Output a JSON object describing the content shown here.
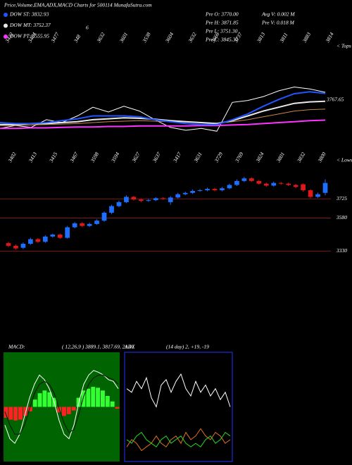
{
  "header": {
    "title": "Price,Volume,EMA,ADX,MACD Charts for 500114 MunafaSutra.com",
    "info": [
      "Pre O: 3770.00",
      "Pre H: 3871.85",
      "Pre L: 3751.30",
      "Pre C: 3845.30",
      "Avg V: 0.002 M",
      "Pre V: 0.018 M"
    ],
    "note": "6"
  },
  "chart_data": [
    {
      "type": "line",
      "ylim": [
        3230,
        4350
      ],
      "tops_title": "< Tops",
      "lows_title": "< Lows",
      "top_labels": [
        "3432",
        "3484",
        "3477",
        "348",
        "3632",
        "3601",
        "3538",
        "3604",
        "3632",
        "3666",
        "3737",
        "3813",
        "3811",
        "3883",
        "3814"
      ],
      "bottom_labels": [
        "3402",
        "3413",
        "3415",
        "3467",
        "3598",
        "3594",
        "3627",
        "3637",
        "3417",
        "3631",
        "3729",
        "3769",
        "3824",
        "3801",
        "3832",
        "3800"
      ],
      "annotations": [
        {
          "label": "3767.65",
          "value": 3767.65
        }
      ],
      "series": [
        {
          "color": "#ffffff",
          "values": [
            3470,
            3500,
            3480,
            3560,
            3530,
            3600,
            3690,
            3640,
            3700,
            3650,
            3560,
            3480,
            3450,
            3470,
            3440,
            3740,
            3760,
            3800,
            3860,
            3900,
            3880,
            3845
          ]
        },
        {
          "color": "#c8864a",
          "values": [
            3500,
            3500,
            3505,
            3510,
            3515,
            3520,
            3530,
            3540,
            3545,
            3550,
            3545,
            3540,
            3535,
            3530,
            3525,
            3540,
            3560,
            3590,
            3620,
            3650,
            3665,
            3670
          ]
        },
        {
          "name": "DOW PT: 3555.95",
          "color": "#ff33ff",
          "values": [
            3470,
            3470,
            3475,
            3475,
            3480,
            3485,
            3485,
            3490,
            3490,
            3495,
            3495,
            3495,
            3495,
            3500,
            3500,
            3505,
            3510,
            3520,
            3530,
            3540,
            3550,
            3556
          ]
        },
        {
          "name": "DOW MT: 3752.37",
          "color": "#e8e8e8",
          "values": [
            3510,
            3510,
            3520,
            3520,
            3530,
            3540,
            3560,
            3570,
            3580,
            3575,
            3565,
            3550,
            3540,
            3530,
            3520,
            3550,
            3600,
            3650,
            3690,
            3730,
            3745,
            3752
          ]
        },
        {
          "name": "DOW ST: 3832.93",
          "color": "#2255ff",
          "values": [
            3530,
            3520,
            3520,
            3530,
            3550,
            3570,
            3600,
            3600,
            3600,
            3590,
            3560,
            3540,
            3520,
            3510,
            3510,
            3560,
            3620,
            3700,
            3770,
            3830,
            3850,
            3833
          ]
        }
      ]
    },
    {
      "type": "candlestick",
      "ylim": [
        3300,
        3950
      ],
      "yticks": [
        3725,
        3580,
        3330
      ],
      "up_color": "#1e6fff",
      "down_color": "#e01818",
      "tick_color": "#7a1a1a",
      "open": [
        3390,
        3370,
        3355,
        3385,
        3420,
        3400,
        3440,
        3455,
        3430,
        3510,
        3540,
        3520,
        3535,
        3560,
        3620,
        3670,
        3700,
        3740,
        3720,
        3710,
        3715,
        3730,
        3700,
        3735,
        3760,
        3770,
        3785,
        3790,
        3800,
        3790,
        3805,
        3830,
        3860,
        3880,
        3860,
        3840,
        3825,
        3845,
        3840,
        3830,
        3835,
        3790,
        3740,
        3770
      ],
      "high": [
        3400,
        3380,
        3395,
        3430,
        3428,
        3450,
        3462,
        3462,
        3520,
        3550,
        3548,
        3545,
        3570,
        3630,
        3680,
        3712,
        3752,
        3748,
        3728,
        3724,
        3738,
        3738,
        3745,
        3770,
        3780,
        3795,
        3800,
        3810,
        3808,
        3815,
        3840,
        3872,
        3892,
        3888,
        3868,
        3848,
        3855,
        3852,
        3848,
        3838,
        3842,
        3798,
        3772,
        3871.85
      ],
      "low": [
        3360,
        3340,
        3345,
        3378,
        3392,
        3392,
        3432,
        3422,
        3424,
        3502,
        3512,
        3512,
        3528,
        3552,
        3610,
        3662,
        3692,
        3712,
        3700,
        3702,
        3708,
        3718,
        3680,
        3728,
        3752,
        3762,
        3778,
        3782,
        3782,
        3782,
        3798,
        3822,
        3852,
        3852,
        3832,
        3816,
        3818,
        3832,
        3822,
        3806,
        3780,
        3730,
        3732,
        3751.3
      ],
      "close": [
        3370,
        3350,
        3385,
        3420,
        3400,
        3440,
        3455,
        3430,
        3510,
        3540,
        3520,
        3535,
        3560,
        3620,
        3670,
        3700,
        3740,
        3720,
        3710,
        3715,
        3730,
        3725,
        3735,
        3760,
        3770,
        3785,
        3790,
        3800,
        3790,
        3805,
        3830,
        3860,
        3880,
        3860,
        3840,
        3825,
        3845,
        3840,
        3830,
        3815,
        3790,
        3740,
        3760,
        3845.3
      ]
    },
    {
      "type": "macd",
      "title": "MACD:",
      "subtitle": "( 12,26,9 ) 3889.1, 3817.69, 21.41",
      "ylim": [
        -60,
        60
      ],
      "background": "#006400",
      "up_color": "#33ff33",
      "down_color": "#ff2222",
      "histogram": [
        -12,
        -14,
        -15,
        -14,
        -10,
        -5,
        8,
        15,
        18,
        16,
        10,
        -6,
        -10,
        -8,
        -4,
        10,
        18,
        20,
        22,
        21,
        18,
        12,
        6,
        -2
      ],
      "series": [
        {
          "color": "#ffffff",
          "values": [
            -20,
            -35,
            -40,
            -30,
            -10,
            10,
            25,
            35,
            30,
            20,
            5,
            -15,
            -30,
            -35,
            -20,
            5,
            25,
            35,
            40,
            38,
            35,
            30,
            28,
            20
          ]
        },
        {
          "color": "#111111",
          "values": [
            -5,
            -20,
            -30,
            -30,
            -20,
            -2,
            15,
            25,
            28,
            25,
            15,
            -2,
            -18,
            -28,
            -25,
            -8,
            12,
            25,
            32,
            35,
            35,
            32,
            30,
            25
          ]
        }
      ]
    },
    {
      "type": "adx",
      "title": "ADX",
      "subtitle": "(14 day) 2, +19, -19",
      "ylim": [
        0,
        60
      ],
      "border": "#2233ff",
      "series": [
        {
          "color": "#ffffff",
          "values": [
            40,
            38,
            44,
            40,
            46,
            35,
            30,
            42,
            45,
            38,
            44,
            48,
            40,
            36,
            44,
            38,
            42,
            36,
            40,
            34,
            38,
            30
          ]
        },
        {
          "color": "#e07020",
          "values": [
            8,
            12,
            10,
            6,
            8,
            10,
            14,
            10,
            8,
            12,
            14,
            10,
            16,
            12,
            14,
            18,
            14,
            12,
            16,
            14,
            10,
            12
          ]
        },
        {
          "color": "#22dd22",
          "values": [
            12,
            10,
            14,
            16,
            12,
            10,
            8,
            12,
            14,
            10,
            12,
            14,
            10,
            8,
            10,
            8,
            12,
            14,
            10,
            12,
            16,
            14
          ]
        }
      ]
    }
  ]
}
